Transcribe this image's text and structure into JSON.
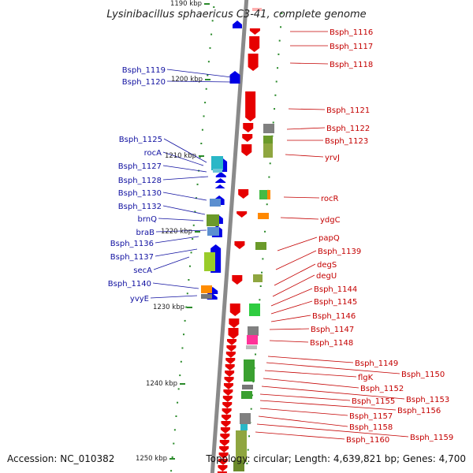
{
  "header": {
    "title": "Lysinibacillus sphaericus C3-41, complete genome"
  },
  "footer": {
    "accession": "Accession: NC_010382",
    "topology": "Topology: circular; Length: 4,639,821 bp; Genes: 4,700"
  },
  "colors": {
    "backbone": "#8a8a8a",
    "forward_gene": "#0000e6",
    "reverse_gene": "#e60000",
    "left_label": "#1010a0",
    "right_label": "#c40000",
    "tick": "#2a8a2a"
  },
  "scale_labels": [
    "1190 kbp",
    "1200 kbp",
    "1210 kbp",
    "1220 kbp",
    "1230 kbp",
    "1240 kbp",
    "1250 kbp"
  ],
  "left_labels": [
    "Bsph_1119",
    "Bsph_1120",
    "Bsph_1125",
    "rocA",
    "Bsph_1127",
    "Bsph_1128",
    "Bsph_1130",
    "Bsph_1132",
    "brnQ",
    "braB",
    "Bsph_1136",
    "Bsph_1137",
    "secA",
    "Bsph_1140",
    "yvyE"
  ],
  "right_labels": [
    "Bsph_1116",
    "Bsph_1117",
    "Bsph_1118",
    "Bsph_1121",
    "Bsph_1122",
    "Bsph_1123",
    "yrvJ",
    "rocR",
    "ydgC",
    "papQ",
    "Bsph_1139",
    "degS",
    "degU",
    "Bsph_1144",
    "Bsph_1145",
    "Bsph_1146",
    "Bsph_1147",
    "Bsph_1148",
    "Bsph_1149",
    "Bsph_1150",
    "flgK",
    "Bsph_1152",
    "Bsph_1153",
    "Bsph_1155",
    "Bsph_1156",
    "Bsph_1157",
    "Bsph_1158",
    "Bsph_1159",
    "Bsph_1160"
  ]
}
